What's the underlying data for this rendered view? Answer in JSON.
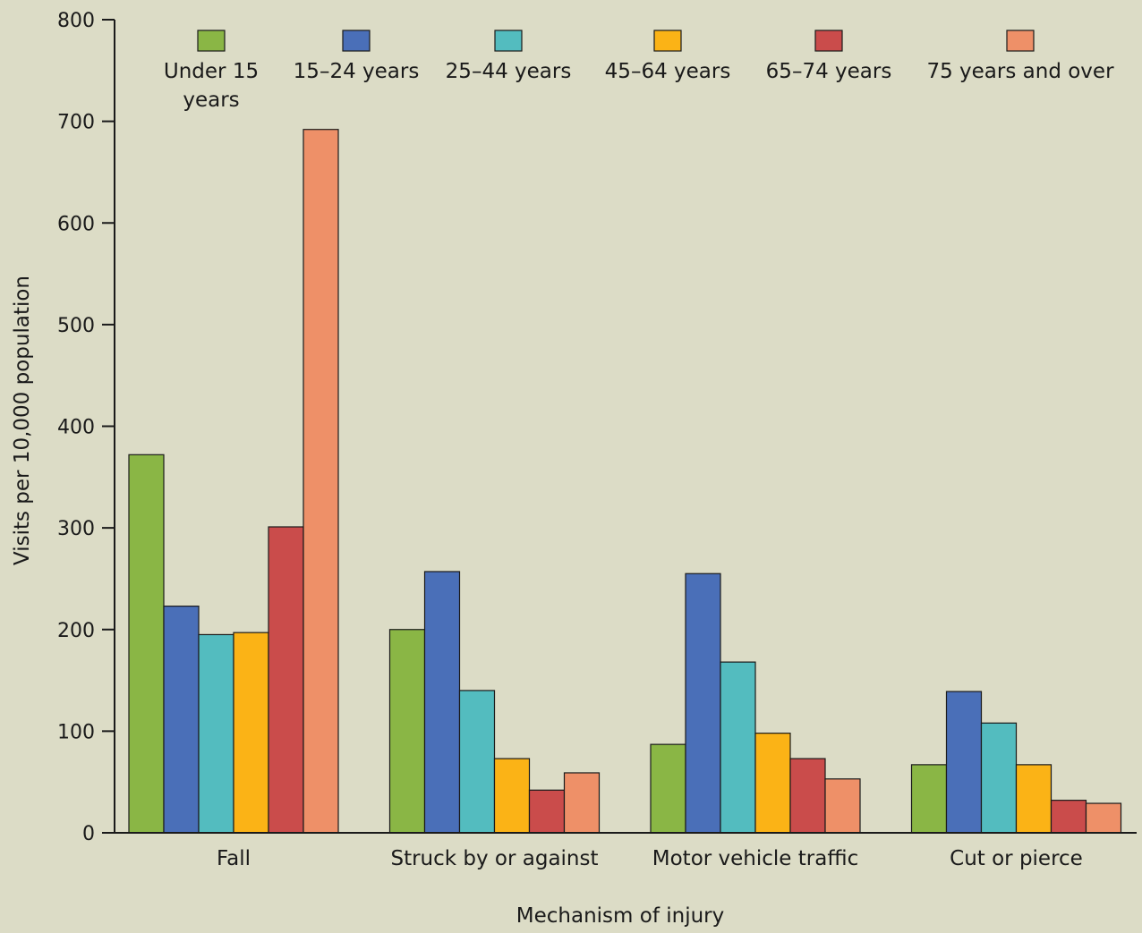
{
  "chart_data": {
    "type": "bar",
    "title": "",
    "xlabel": "Mechanism of injury",
    "ylabel": "Visits per 10,000 population",
    "ylim": [
      0,
      800
    ],
    "yticks": [
      "0",
      "100",
      "200",
      "300",
      "400",
      "500",
      "600",
      "700",
      "800"
    ],
    "grid": false,
    "legend_position": "top",
    "categories": [
      "Fall",
      "Struck by or against",
      "Motor vehicle traffic",
      "Cut or pierce"
    ],
    "series": [
      {
        "name": "Under 15 years",
        "legend_lines": [
          "Under 15",
          "years"
        ],
        "color": "#8ab645",
        "values": [
          372,
          200,
          87,
          67
        ]
      },
      {
        "name": "15–24 years",
        "legend_lines": [
          "15–24 years"
        ],
        "color": "#4a6fb8",
        "values": [
          223,
          257,
          255,
          139
        ]
      },
      {
        "name": "25–44 years",
        "legend_lines": [
          "25–44 years"
        ],
        "color": "#53bcbf",
        "values": [
          195,
          140,
          168,
          108
        ]
      },
      {
        "name": "45–64 years",
        "legend_lines": [
          "45–64 years"
        ],
        "color": "#fbb316",
        "values": [
          197,
          73,
          98,
          67
        ]
      },
      {
        "name": "65–74 years",
        "legend_lines": [
          "65–74 years"
        ],
        "color": "#ca4c4b",
        "values": [
          301,
          42,
          73,
          32
        ]
      },
      {
        "name": "75 years and over",
        "legend_lines": [
          "75 years and over"
        ],
        "color": "#ee9068",
        "values": [
          692,
          59,
          53,
          29
        ]
      }
    ]
  }
}
